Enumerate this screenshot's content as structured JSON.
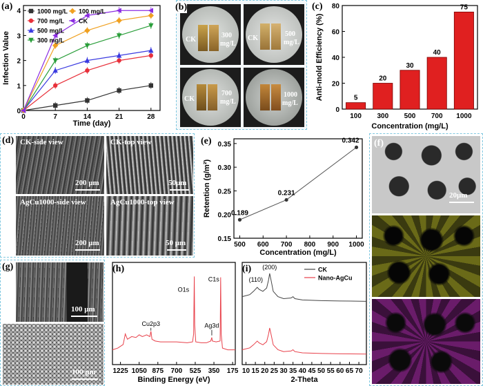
{
  "colors": {
    "frame": "#7fc8e0",
    "bar": "#e02020",
    "ck": "#444444",
    "agcu": "#e8404a"
  },
  "panels": {
    "a": {
      "label": "(a)"
    },
    "b": {
      "label": "(b)"
    },
    "c": {
      "label": "(c)"
    },
    "d": {
      "label": "(d)"
    },
    "e": {
      "label": "(e)"
    },
    "f": {
      "label": "(f)"
    },
    "g": {
      "label": "(g)"
    },
    "h": {
      "label": "(h)"
    },
    "i": {
      "label": "(i)"
    }
  },
  "photos": {
    "b": {
      "q1": {
        "ck": "CK",
        "conc": "300",
        "unit": "mg/L"
      },
      "q2": {
        "ck": "CK",
        "conc": "500",
        "unit": "mg/L"
      },
      "q3": {
        "ck": "CK",
        "conc": "700",
        "unit": "mg/L"
      },
      "q4": {
        "conc": "1000",
        "unit": "mg/L"
      }
    },
    "d": {
      "q1": {
        "caption": "CK-side view",
        "scale": "200 μm"
      },
      "q2": {
        "caption": "CK-top view",
        "scale": "50μm"
      },
      "q3": {
        "caption": "AgCu1000-side view",
        "scale": "200 μm"
      },
      "q4": {
        "caption": "AgCu1000-top view",
        "scale": "50 μm"
      }
    },
    "f": {
      "scale": "20μm"
    },
    "g": {
      "top_scale": "100 μm",
      "bottom_scale": "100 μm"
    }
  },
  "chart_data": [
    {
      "panel": "a",
      "type": "line",
      "xlabel": "Time (day)",
      "ylabel": "Infection Value",
      "xticks": [
        0,
        7,
        14,
        21,
        28
      ],
      "yticks": [
        0,
        1,
        2,
        3,
        4
      ],
      "xlim": [
        0,
        30
      ],
      "ylim": [
        0,
        4.2
      ],
      "x": [
        0,
        7,
        14,
        21,
        28
      ],
      "series": [
        {
          "name": "1000 mg/L",
          "color": "#333333",
          "marker": "square",
          "values": [
            0,
            0.2,
            0.4,
            0.8,
            1.0
          ]
        },
        {
          "name": "700 mg/L",
          "color": "#e8303a",
          "marker": "circle",
          "values": [
            0,
            1.0,
            1.6,
            2.0,
            2.2
          ]
        },
        {
          "name": "500 mg/L",
          "color": "#3a3ae0",
          "marker": "triangle-up",
          "values": [
            0,
            1.6,
            2.0,
            2.2,
            2.4
          ]
        },
        {
          "name": "300 mg/L",
          "color": "#2a9e3a",
          "marker": "triangle-down",
          "values": [
            0,
            2.0,
            2.6,
            3.0,
            3.4
          ]
        },
        {
          "name": "100 mg/L",
          "color": "#f0a020",
          "marker": "diamond",
          "values": [
            0,
            2.6,
            3.2,
            3.6,
            3.8
          ]
        },
        {
          "name": "CK",
          "color": "#8a2be2",
          "marker": "triangle-left",
          "values": [
            0,
            3.0,
            3.8,
            4.0,
            4.0
          ]
        }
      ],
      "legend_position": "top-left"
    },
    {
      "panel": "c",
      "type": "bar",
      "xlabel": "Concentration (mg/L)",
      "ylabel": "Anti-mold Efficiency (%)",
      "categories": [
        "100",
        "300",
        "500",
        "700",
        "1000"
      ],
      "values": [
        5,
        20,
        30,
        40,
        75
      ],
      "yticks": [
        0,
        20,
        40,
        60,
        80
      ],
      "ylim": [
        0,
        80
      ]
    },
    {
      "panel": "e",
      "type": "line",
      "xlabel": "Concentration (mg/L)",
      "ylabel": "Retention (g/m²)",
      "x": [
        500,
        700,
        1000
      ],
      "values": [
        0.189,
        0.231,
        0.342
      ],
      "point_labels": [
        "0.189",
        "0.231",
        "0.342"
      ],
      "xticks": [
        500,
        600,
        700,
        800,
        900,
        1000
      ],
      "yticks": [
        "0.15",
        "0.20",
        "0.25",
        "0.30",
        "0.35"
      ],
      "xlim": [
        475,
        1025
      ],
      "ylim": [
        0.15,
        0.36
      ]
    },
    {
      "panel": "h",
      "type": "line",
      "xlabel": "Binding Energy (eV)",
      "xticks": [
        1225,
        1050,
        875,
        700,
        525,
        350,
        175
      ],
      "xlim": [
        1300,
        150
      ],
      "annotations": [
        "O1s",
        "C1s",
        "Cu2p3",
        "Ag3d"
      ],
      "series": [
        {
          "name": "",
          "color": "#e8404a"
        }
      ]
    },
    {
      "panel": "i",
      "type": "line",
      "xlabel": "2-Theta",
      "xticks": [
        10,
        15,
        20,
        25,
        30,
        35,
        40,
        45,
        50,
        55,
        60,
        65,
        70
      ],
      "xlim": [
        8,
        74
      ],
      "annotations": [
        "(110)",
        "(200)"
      ],
      "series": [
        {
          "name": "CK",
          "color": "#444444"
        },
        {
          "name": "Nano-AgCu",
          "color": "#e8404a"
        }
      ],
      "legend_position": "top-right"
    }
  ]
}
